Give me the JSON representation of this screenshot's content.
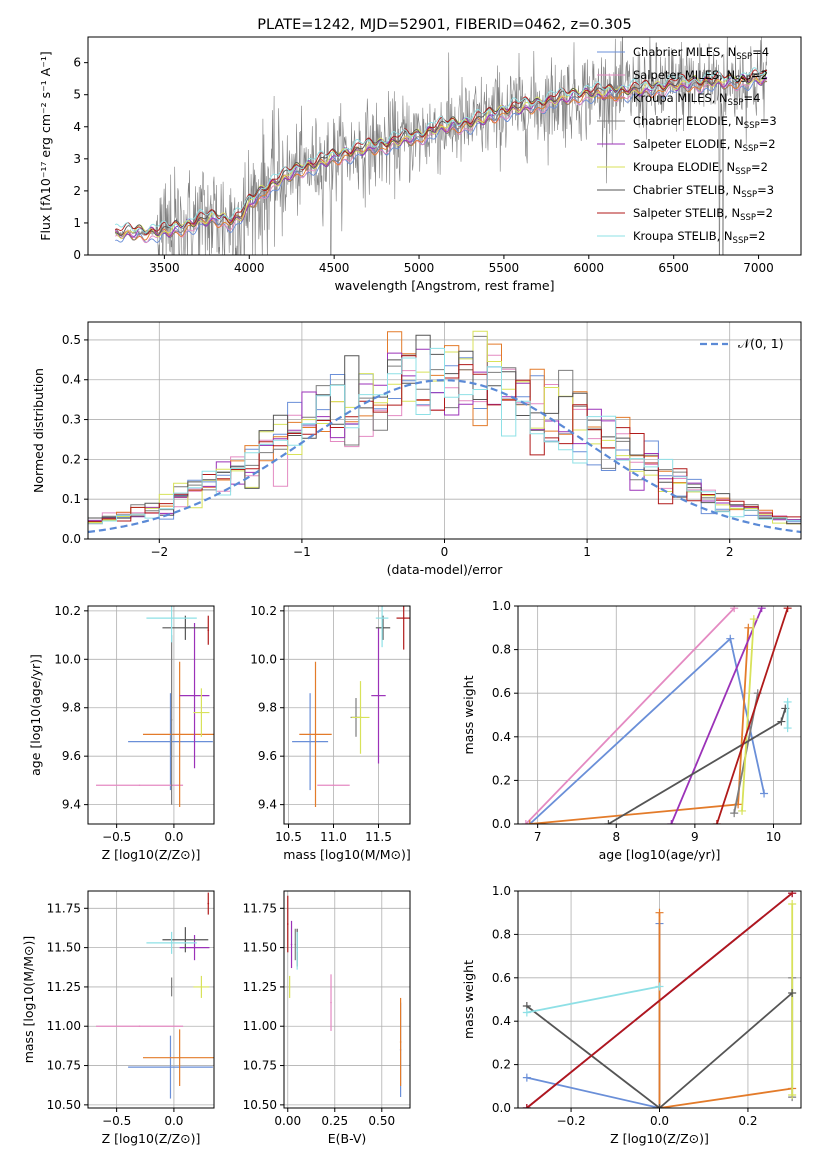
{
  "colors": {
    "Chabrier MILES": "#6a8fd8",
    "Salpeter MILES": "#e48ac2",
    "Kroupa MILES": "#e37b2a",
    "Chabrier ELODIE": "#7d7d7d",
    "Salpeter ELODIE": "#9b32b8",
    "Kroupa ELODIE": "#d8e25a",
    "Chabrier STELIB": "#555555",
    "Salpeter STELIB": "#b01a1a",
    "Kroupa STELIB": "#8ee0e6",
    "data": "#808080",
    "normal": "#5b8ad6"
  },
  "chart_data": [
    {
      "type": "line",
      "title": "PLATE=1242, MJD=52901, FIBERID=0462, z=0.305",
      "xlabel": "wavelength [Angstrom, rest frame]",
      "ylabel": "Flux [fλ10⁻¹⁷ erg cm⁻² s⁻¹ A⁻¹]",
      "xlim": [
        3050,
        7250
      ],
      "ylim": [
        0,
        6.8
      ],
      "xticks": [
        3500,
        4000,
        4500,
        5000,
        5500,
        6000,
        6500,
        7000
      ],
      "yticks": [
        0,
        1,
        2,
        3,
        4,
        5,
        6
      ],
      "legend_position": "top-right",
      "legend": [
        "Chabrier MILES, N_SSP=4",
        "Salpeter MILES, N_SSP=2",
        "Kroupa MILES, N_SSP=4",
        "Chabrier ELODIE, N_SSP=3",
        "Salpeter ELODIE, N_SSP=2",
        "Kroupa ELODIE, N_SSP=2",
        "Chabrier STELIB, N_SSP=3",
        "Salpeter STELIB, N_SSP=2",
        "Kroupa STELIB, N_SSP=2"
      ],
      "continuum": {
        "x": [
          3210,
          3300,
          3400,
          3500,
          3600,
          3700,
          3800,
          3900,
          3950,
          4000,
          4100,
          4200,
          4300,
          4400,
          4500,
          4600,
          4700,
          4800,
          4900,
          5000,
          5100,
          5200,
          5300,
          5400,
          5500,
          5600,
          5700,
          5800,
          5900,
          6000,
          6100,
          6200,
          6300,
          6400,
          6500,
          6600,
          6700,
          6800,
          6900,
          7000,
          7050
        ],
        "y": [
          0.65,
          0.7,
          0.7,
          0.72,
          0.85,
          1.05,
          1.15,
          1.05,
          1.2,
          1.6,
          2.1,
          2.4,
          2.7,
          2.85,
          3.05,
          3.2,
          3.35,
          3.45,
          3.6,
          3.7,
          3.95,
          4.05,
          4.1,
          4.3,
          4.5,
          4.6,
          4.7,
          4.85,
          4.95,
          5.05,
          5.05,
          5.1,
          5.15,
          5.2,
          5.3,
          5.35,
          5.4,
          5.4,
          5.45,
          5.5,
          5.5
        ]
      }
    },
    {
      "type": "line",
      "xlabel": "(data-model)/error",
      "ylabel": "Normed distribution",
      "xlim": [
        -2.5,
        2.5
      ],
      "ylim": [
        0,
        0.545
      ],
      "xticks": [
        -2,
        -1,
        0,
        1,
        2
      ],
      "yticks": [
        0.0,
        0.1,
        0.2,
        0.3,
        0.4,
        0.5
      ],
      "legend": [
        "𝒩(0, 1)"
      ],
      "legend_position": "top-right",
      "series": [
        {
          "name": "𝒩(0, 1)",
          "function": "normal",
          "mean": 0,
          "sigma": 1
        }
      ],
      "histograms_range": [
        -2.5,
        2.5
      ],
      "histograms_bins": 50
    },
    {
      "type": "scatter",
      "xlabel": "Z [log10(Z/Z⊙)]",
      "ylabel": "age  [log10(age/yr)]",
      "xlim": [
        -0.75,
        0.35
      ],
      "ylim": [
        9.32,
        10.22
      ],
      "xticks": [
        -0.5,
        0.0
      ],
      "yticks": [
        9.4,
        9.6,
        9.8,
        10.0,
        10.2
      ],
      "points": [
        {
          "model": "Chabrier MILES",
          "x": -0.03,
          "y": 9.66,
          "xerr": 0.37,
          "yerr": 0.2
        },
        {
          "model": "Salpeter MILES",
          "x": -0.3,
          "y": 9.48,
          "xerr": 0.38,
          "yerr": 0.0
        },
        {
          "model": "Kroupa MILES",
          "x": 0.05,
          "y": 9.69,
          "xerr": 0.32,
          "yerr": 0.3
        },
        {
          "model": "Chabrier ELODIE",
          "x": -0.02,
          "y": 9.75,
          "xerr": 0.0,
          "yerr": 0.35
        },
        {
          "model": "Salpeter ELODIE",
          "x": 0.18,
          "y": 9.85,
          "xerr": 0.13,
          "yerr": 0.3
        },
        {
          "model": "Kroupa ELODIE",
          "x": 0.24,
          "y": 9.78,
          "xerr": 0.07,
          "yerr": 0.1
        },
        {
          "model": "Chabrier STELIB",
          "x": 0.1,
          "y": 10.13,
          "xerr": 0.2,
          "yerr": 0.05
        },
        {
          "model": "Salpeter STELIB",
          "x": 0.3,
          "y": 10.12,
          "xerr": 0.0,
          "yerr": 0.06
        },
        {
          "model": "Kroupa STELIB",
          "x": -0.02,
          "y": 10.17,
          "xerr": 0.22,
          "yerr": 0.1
        }
      ]
    },
    {
      "type": "scatter",
      "xlabel": "mass [log10(M/M⊙)]",
      "ylabel": "",
      "xlim": [
        10.45,
        11.85
      ],
      "ylim": [
        9.32,
        10.22
      ],
      "xticks": [
        10.5,
        11.0,
        11.5
      ],
      "yticks": [
        9.4,
        9.6,
        9.8,
        10.0,
        10.2
      ],
      "points": [
        {
          "model": "Chabrier MILES",
          "x": 10.74,
          "y": 9.66,
          "xerr": 0.2,
          "yerr": 0.2
        },
        {
          "model": "Salpeter MILES",
          "x": 11.0,
          "y": 9.48,
          "xerr": 0.18,
          "yerr": 0.0
        },
        {
          "model": "Kroupa MILES",
          "x": 10.8,
          "y": 9.69,
          "xerr": 0.18,
          "yerr": 0.3
        },
        {
          "model": "Chabrier ELODIE",
          "x": 11.25,
          "y": 9.76,
          "xerr": 0.06,
          "yerr": 0.08
        },
        {
          "model": "Salpeter ELODIE",
          "x": 11.5,
          "y": 9.85,
          "xerr": 0.08,
          "yerr": 0.28
        },
        {
          "model": "Kroupa ELODIE",
          "x": 11.3,
          "y": 9.76,
          "xerr": 0.1,
          "yerr": 0.15
        },
        {
          "model": "Chabrier STELIB",
          "x": 11.55,
          "y": 10.13,
          "xerr": 0.08,
          "yerr": 0.05
        },
        {
          "model": "Salpeter STELIB",
          "x": 11.78,
          "y": 10.17,
          "xerr": 0.08,
          "yerr": 0.13
        },
        {
          "model": "Kroupa STELIB",
          "x": 11.54,
          "y": 10.17,
          "xerr": 0.07,
          "yerr": 0.12
        }
      ]
    },
    {
      "type": "line",
      "xlabel": "age  [log10(age/yr)]",
      "ylabel": "mass weight",
      "xlim": [
        6.75,
        10.35
      ],
      "ylim": [
        0,
        1.0
      ],
      "xticks": [
        7,
        8,
        9,
        10
      ],
      "yticks": [
        0.0,
        0.2,
        0.4,
        0.6,
        0.8,
        1.0
      ],
      "series": [
        {
          "model": "Chabrier MILES",
          "x": [
            6.9,
            9.45,
            9.88
          ],
          "y": [
            0.0,
            0.85,
            0.14
          ]
        },
        {
          "model": "Salpeter MILES",
          "x": [
            6.85,
            9.5
          ],
          "y": [
            0.0,
            0.99
          ]
        },
        {
          "model": "Kroupa MILES",
          "x": [
            6.9,
            9.55,
            9.68
          ],
          "y": [
            0.0,
            0.09,
            0.9
          ]
        },
        {
          "model": "Chabrier ELODIE",
          "x": [
            9.5,
            9.8
          ],
          "y": [
            0.05,
            0.6
          ]
        },
        {
          "model": "Salpeter ELODIE",
          "x": [
            8.7,
            9.85
          ],
          "y": [
            0.0,
            0.99
          ]
        },
        {
          "model": "Kroupa ELODIE",
          "x": [
            9.6,
            9.75
          ],
          "y": [
            0.06,
            0.94
          ]
        },
        {
          "model": "Chabrier STELIB",
          "x": [
            7.9,
            10.1,
            10.15
          ],
          "y": [
            0.0,
            0.47,
            0.53
          ]
        },
        {
          "model": "Salpeter STELIB",
          "x": [
            9.28,
            10.18
          ],
          "y": [
            0.0,
            0.99
          ]
        },
        {
          "model": "Kroupa STELIB",
          "x": [
            10.18,
            10.18
          ],
          "y": [
            0.44,
            0.56
          ]
        }
      ]
    },
    {
      "type": "scatter",
      "xlabel": "Z [log10(Z/Z⊙)]",
      "ylabel": "mass [log10(M/M⊙)]",
      "xlim": [
        -0.75,
        0.35
      ],
      "ylim": [
        10.48,
        11.86
      ],
      "xticks": [
        -0.5,
        0.0
      ],
      "yticks": [
        10.5,
        10.75,
        11.0,
        11.25,
        11.5,
        11.75
      ],
      "points": [
        {
          "model": "Chabrier MILES",
          "x": -0.03,
          "y": 10.74,
          "xerr": 0.37,
          "yerr": 0.2
        },
        {
          "model": "Salpeter MILES",
          "x": -0.3,
          "y": 11.0,
          "xerr": 0.38,
          "yerr": 0.0
        },
        {
          "model": "Kroupa MILES",
          "x": 0.05,
          "y": 10.8,
          "xerr": 0.32,
          "yerr": 0.18
        },
        {
          "model": "Chabrier ELODIE",
          "x": -0.02,
          "y": 11.25,
          "xerr": 0.0,
          "yerr": 0.06
        },
        {
          "model": "Salpeter ELODIE",
          "x": 0.18,
          "y": 11.5,
          "xerr": 0.13,
          "yerr": 0.08
        },
        {
          "model": "Kroupa ELODIE",
          "x": 0.24,
          "y": 11.25,
          "xerr": 0.07,
          "yerr": 0.07
        },
        {
          "model": "Chabrier STELIB",
          "x": 0.1,
          "y": 11.55,
          "xerr": 0.2,
          "yerr": 0.08
        },
        {
          "model": "Salpeter STELIB",
          "x": 0.3,
          "y": 11.78,
          "xerr": 0.0,
          "yerr": 0.07
        },
        {
          "model": "Kroupa STELIB",
          "x": -0.02,
          "y": 11.53,
          "xerr": 0.22,
          "yerr": 0.07
        }
      ]
    },
    {
      "type": "scatter",
      "xlabel": "E(B-V)",
      "ylabel": "",
      "xlim": [
        -0.02,
        0.65
      ],
      "ylim": [
        10.48,
        11.86
      ],
      "xticks": [
        0.0,
        0.25,
        0.5
      ],
      "yticks": [
        10.5,
        10.75,
        11.0,
        11.25,
        11.5,
        11.75
      ],
      "points": [
        {
          "model": "Chabrier MILES",
          "x": 0.6,
          "y": 10.85,
          "xerr": 0.0,
          "yerr": 0.3
        },
        {
          "model": "Salpeter MILES",
          "x": 0.23,
          "y": 11.15,
          "xerr": 0.0,
          "yerr": 0.18
        },
        {
          "model": "Kroupa MILES",
          "x": 0.6,
          "y": 10.9,
          "xerr": 0.0,
          "yerr": 0.28
        },
        {
          "model": "Chabrier ELODIE",
          "x": 0.04,
          "y": 11.52,
          "xerr": 0.0,
          "yerr": 0.1
        },
        {
          "model": "Salpeter ELODIE",
          "x": 0.02,
          "y": 11.52,
          "xerr": 0.0,
          "yerr": 0.15
        },
        {
          "model": "Kroupa ELODIE",
          "x": 0.01,
          "y": 11.25,
          "xerr": 0.0,
          "yerr": 0.07
        },
        {
          "model": "Chabrier STELIB",
          "x": 0.05,
          "y": 11.5,
          "xerr": 0.0,
          "yerr": 0.12
        },
        {
          "model": "Salpeter STELIB",
          "x": 0.0,
          "y": 11.65,
          "xerr": 0.0,
          "yerr": 0.18
        },
        {
          "model": "Kroupa STELIB",
          "x": 0.05,
          "y": 11.48,
          "xerr": 0.0,
          "yerr": 0.12
        }
      ]
    },
    {
      "type": "line",
      "xlabel": "Z [log10(Z/Z⊙)]",
      "ylabel": "mass weight",
      "xlim": [
        -0.32,
        0.32
      ],
      "ylim": [
        0,
        1.0
      ],
      "xticks": [
        -0.2,
        0.0,
        0.2
      ],
      "yticks": [
        0.0,
        0.2,
        0.4,
        0.6,
        0.8,
        1.0
      ],
      "series": [
        {
          "model": "Chabrier MILES",
          "x": [
            -0.3,
            0.0,
            0.0
          ],
          "y": [
            0.14,
            0.0,
            0.85
          ]
        },
        {
          "model": "Salpeter MILES",
          "x": [
            -0.3,
            0.3
          ],
          "y": [
            0.0,
            0.99
          ]
        },
        {
          "model": "Kroupa MILES",
          "x": [
            0.0,
            0.0,
            0.3
          ],
          "y": [
            0.9,
            0.0,
            0.09
          ]
        },
        {
          "model": "Chabrier ELODIE",
          "x": [
            0.3,
            0.3
          ],
          "y": [
            0.05,
            0.6
          ]
        },
        {
          "model": "Salpeter ELODIE",
          "x": [
            -0.3,
            0.3
          ],
          "y": [
            0.0,
            0.99
          ]
        },
        {
          "model": "Kroupa ELODIE",
          "x": [
            0.3,
            0.3
          ],
          "y": [
            0.06,
            0.94
          ]
        },
        {
          "model": "Chabrier STELIB",
          "x": [
            -0.3,
            0.0,
            0.3
          ],
          "y": [
            0.47,
            0.0,
            0.53
          ]
        },
        {
          "model": "Salpeter STELIB",
          "x": [
            -0.3,
            0.3
          ],
          "y": [
            0.0,
            0.99
          ]
        },
        {
          "model": "Kroupa STELIB",
          "x": [
            -0.3,
            0.0
          ],
          "y": [
            0.44,
            0.56
          ]
        }
      ]
    }
  ]
}
